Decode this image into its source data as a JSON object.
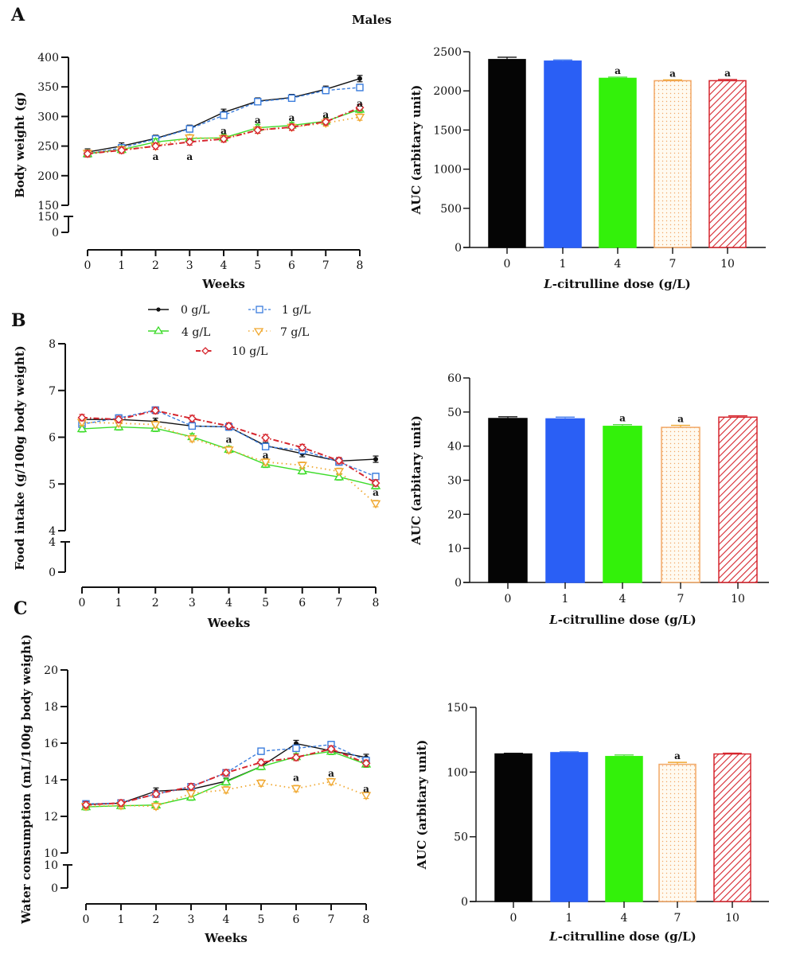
{
  "figure": {
    "title": "Males",
    "panel_labels": [
      "A",
      "B",
      "C"
    ]
  },
  "legend": {
    "items": [
      {
        "label": "0 g/L",
        "color": "#111111",
        "marker": "filled-circle",
        "dash": "solid"
      },
      {
        "label": "1 g/L",
        "color": "#3b7ddd",
        "marker": "square",
        "dash": "dashed"
      },
      {
        "label": "4 g/L",
        "color": "#3ddc2a",
        "marker": "triangle-up",
        "dash": "solid"
      },
      {
        "label": "7 g/L",
        "color": "#f0a830",
        "marker": "triangle-down",
        "dash": "dotted"
      },
      {
        "label": "10 g/L",
        "color": "#d6262e",
        "marker": "diamond",
        "dash": "dash-dot"
      }
    ]
  },
  "chart_data": [
    {
      "id": "A-line",
      "type": "line",
      "title": "",
      "xlabel": "Weeks",
      "ylabel": "Body weight (g)",
      "x": [
        0,
        1,
        2,
        3,
        4,
        5,
        6,
        7,
        8
      ],
      "ylim": [
        150,
        400
      ],
      "yticks": [
        150,
        200,
        250,
        300,
        350,
        400
      ],
      "break_ticks": [
        "150",
        "0"
      ],
      "xticks": [
        "0",
        "1",
        "2",
        "3",
        "4",
        "5",
        "6",
        "7",
        "8"
      ],
      "grid": false,
      "series": [
        {
          "name": "0 g/L",
          "values": [
            240,
            250,
            263,
            280,
            307,
            326,
            332,
            346,
            364
          ]
        },
        {
          "name": "1 g/L",
          "values": [
            237,
            247,
            262,
            279,
            302,
            325,
            331,
            344,
            349
          ]
        },
        {
          "name": "4 g/L",
          "values": [
            237,
            244,
            257,
            263,
            264,
            281,
            285,
            292,
            312
          ]
        },
        {
          "name": "7 g/L",
          "values": [
            238,
            244,
            250,
            264,
            263,
            277,
            282,
            289,
            299
          ]
        },
        {
          "name": "10 g/L",
          "values": [
            237,
            243,
            250,
            257,
            262,
            277,
            282,
            291,
            315
          ]
        }
      ],
      "annotations": [
        {
          "x": 2,
          "y": 232,
          "text": "a"
        },
        {
          "x": 3,
          "y": 232,
          "text": "a"
        },
        {
          "x": 4,
          "y": 276,
          "text": "a"
        },
        {
          "x": 5,
          "y": 294,
          "text": "a"
        },
        {
          "x": 6,
          "y": 298,
          "text": "a"
        },
        {
          "x": 7,
          "y": 303,
          "text": "a"
        },
        {
          "x": 8,
          "y": 322,
          "text": "a"
        }
      ]
    },
    {
      "id": "A-bar",
      "type": "bar",
      "title": "",
      "xlabel": "L-citrulline dose (g/L)",
      "xlabel_italic_prefix": "L",
      "xlabel_rest": "-citrulline dose (g/L)",
      "ylabel": "AUC (arbitary unit)",
      "categories": [
        "0",
        "1",
        "4",
        "7",
        "10"
      ],
      "values": [
        2400,
        2380,
        2160,
        2130,
        2130
      ],
      "errors": [
        30,
        15,
        15,
        10,
        15
      ],
      "significance": [
        "",
        "",
        "a",
        "a",
        "a"
      ],
      "ylim": [
        0,
        2500
      ],
      "yticks": [
        0,
        500,
        1000,
        1500,
        2000,
        2500
      ]
    },
    {
      "id": "B-line",
      "type": "line",
      "title": "",
      "xlabel": "Weeks",
      "ylabel": "Food intake (g/100g body weight)",
      "x": [
        0,
        1,
        2,
        3,
        4,
        5,
        6,
        7,
        8
      ],
      "ylim": [
        4,
        8
      ],
      "yticks": [
        4,
        5,
        6,
        7,
        8
      ],
      "break_ticks": [
        "4",
        "0"
      ],
      "xticks": [
        "0",
        "1",
        "2",
        "3",
        "4",
        "5",
        "6",
        "7",
        "8"
      ],
      "grid": false,
      "series": [
        {
          "name": "0 g/L",
          "values": [
            6.38,
            6.38,
            6.34,
            6.24,
            6.22,
            5.82,
            5.65,
            5.49,
            5.53
          ]
        },
        {
          "name": "1 g/L",
          "values": [
            6.28,
            6.41,
            6.58,
            6.24,
            6.22,
            5.8,
            5.72,
            5.47,
            5.16
          ]
        },
        {
          "name": "4 g/L",
          "values": [
            6.18,
            6.22,
            6.19,
            6.01,
            5.74,
            5.42,
            5.28,
            5.15,
            4.96
          ]
        },
        {
          "name": "7 g/L",
          "values": [
            6.32,
            6.3,
            6.27,
            5.97,
            5.73,
            5.47,
            5.4,
            5.27,
            4.58
          ]
        },
        {
          "name": "10 g/L",
          "values": [
            6.42,
            6.38,
            6.57,
            6.4,
            6.24,
            5.99,
            5.78,
            5.5,
            5.02
          ]
        }
      ],
      "annotations": [
        {
          "x": 4,
          "y": 5.95,
          "text": "a"
        },
        {
          "x": 5,
          "y": 5.62,
          "text": "a"
        },
        {
          "x": 8,
          "y": 4.82,
          "text": "a"
        }
      ]
    },
    {
      "id": "B-bar",
      "type": "bar",
      "title": "",
      "xlabel": "L-citrulline dose (g/L)",
      "xlabel_italic_prefix": "L",
      "xlabel_rest": "-citrulline dose (g/L)",
      "ylabel": "AUC (arbitary unit)",
      "categories": [
        "0",
        "1",
        "4",
        "7",
        "10"
      ],
      "values": [
        48.1,
        48.0,
        45.8,
        45.5,
        48.5
      ],
      "errors": [
        0.5,
        0.5,
        0.5,
        0.6,
        0.4
      ],
      "significance": [
        "",
        "",
        "a",
        "a",
        ""
      ],
      "ylim": [
        0,
        60
      ],
      "yticks": [
        0,
        10,
        20,
        30,
        40,
        50,
        60
      ]
    },
    {
      "id": "C-line",
      "type": "line",
      "title": "",
      "xlabel": "Weeks",
      "ylabel": "Water consumption (mL/100g body weight)",
      "x": [
        0,
        1,
        2,
        3,
        4,
        5,
        6,
        7,
        8
      ],
      "ylim": [
        10,
        20
      ],
      "yticks": [
        10,
        12,
        14,
        16,
        18,
        20
      ],
      "break_ticks": [
        "10",
        "0"
      ],
      "xticks": [
        "0",
        "1",
        "2",
        "3",
        "4",
        "5",
        "6",
        "7",
        "8"
      ],
      "grid": false,
      "series": [
        {
          "name": "0 g/L",
          "values": [
            12.65,
            12.72,
            13.38,
            13.48,
            13.92,
            14.73,
            15.98,
            15.58,
            15.22
          ]
        },
        {
          "name": "1 g/L",
          "values": [
            12.68,
            12.73,
            13.22,
            13.62,
            14.38,
            15.56,
            15.72,
            15.92,
            15.05
          ]
        },
        {
          "name": "4 g/L",
          "values": [
            12.52,
            12.58,
            12.62,
            13.05,
            13.88,
            14.72,
            15.26,
            15.55,
            14.85
          ]
        },
        {
          "name": "7 g/L",
          "values": [
            12.55,
            12.6,
            12.55,
            13.25,
            13.45,
            13.82,
            13.52,
            13.9,
            13.15
          ]
        },
        {
          "name": "10 g/L",
          "values": [
            12.63,
            12.73,
            13.22,
            13.62,
            14.38,
            14.95,
            15.22,
            15.68,
            14.9
          ]
        }
      ],
      "annotations": [
        {
          "x": 6,
          "y": 14.1,
          "text": "a"
        },
        {
          "x": 7,
          "y": 14.35,
          "text": "a"
        },
        {
          "x": 8,
          "y": 13.5,
          "text": "a"
        }
      ]
    },
    {
      "id": "C-bar",
      "type": "bar",
      "title": "",
      "xlabel": "L-citrulline dose (g/L)",
      "xlabel_italic_prefix": "L",
      "xlabel_rest": "-citrulline dose (g/L)",
      "ylabel": "AUC (arbitary unit)",
      "categories": [
        "0",
        "1",
        "4",
        "7",
        "10"
      ],
      "values": [
        114,
        115,
        112,
        106,
        114
      ],
      "errors": [
        0.5,
        0.7,
        1.2,
        1.5,
        0.6
      ],
      "significance": [
        "",
        "",
        "",
        "a",
        ""
      ],
      "ylim": [
        0,
        150
      ],
      "yticks": [
        0,
        50,
        100,
        150
      ]
    }
  ]
}
